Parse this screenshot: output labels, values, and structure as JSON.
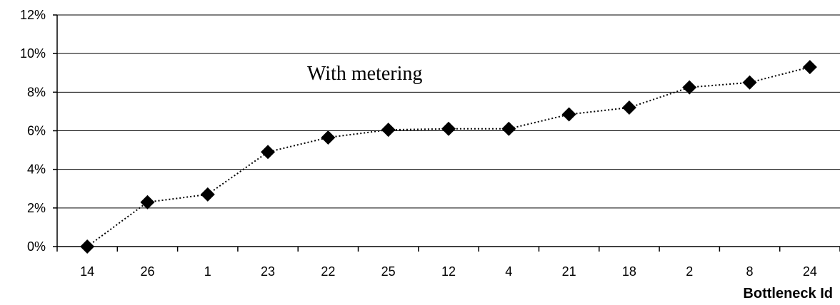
{
  "chart_data": {
    "type": "line",
    "categories": [
      "14",
      "26",
      "1",
      "23",
      "22",
      "25",
      "12",
      "4",
      "21",
      "18",
      "2",
      "8",
      "24"
    ],
    "series": [
      {
        "values": [
          0.0,
          2.3,
          2.7,
          4.9,
          5.65,
          6.05,
          6.1,
          6.1,
          6.85,
          7.2,
          8.25,
          8.5,
          9.3
        ]
      }
    ],
    "xlabel": "Bottleneck Id",
    "ylabel": "",
    "ylim": [
      0,
      12
    ],
    "yticks": [
      0,
      2,
      4,
      6,
      8,
      10,
      12
    ],
    "ytick_format": "%",
    "annotation": "With metering",
    "grid": "horizontal",
    "line_style": "dotted",
    "marker": "diamond",
    "series_color": "#000000"
  }
}
